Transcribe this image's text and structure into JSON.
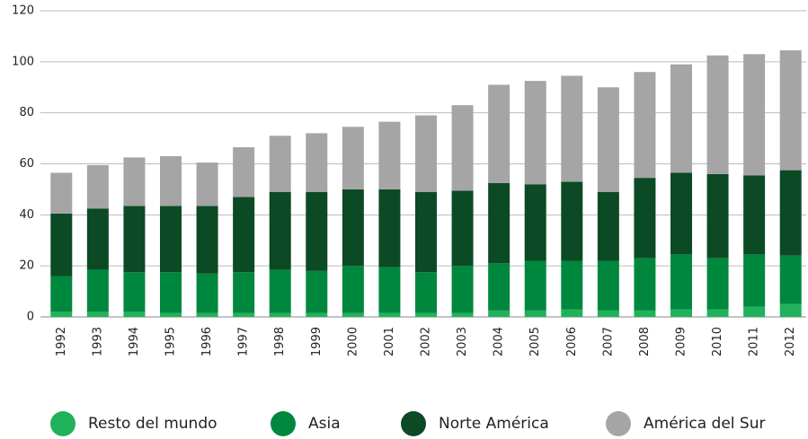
{
  "chart_data": {
    "type": "stacked_bar",
    "categories": [
      "1992",
      "1993",
      "1994",
      "1995",
      "1996",
      "1997",
      "1998",
      "1999",
      "2000",
      "2001",
      "2002",
      "2003",
      "2004",
      "2005",
      "2006",
      "2007",
      "2008",
      "2009",
      "2010",
      "2011",
      "2012"
    ],
    "series": [
      {
        "name": "Resto del mundo",
        "color": "#1fb25a",
        "values": [
          2,
          2,
          2,
          1.5,
          1.5,
          1.5,
          1.5,
          1.5,
          1.5,
          1.5,
          1.5,
          1.5,
          2.5,
          2.5,
          3,
          2.5,
          2.5,
          3,
          3,
          4,
          5
        ]
      },
      {
        "name": "Asia",
        "color": "#00873e",
        "values": [
          14,
          16.5,
          15.5,
          16,
          15.5,
          16,
          17,
          16.5,
          18.5,
          18,
          16,
          18.5,
          18.5,
          19.5,
          19,
          19.5,
          20.5,
          21.5,
          20,
          20.5,
          19
        ]
      },
      {
        "name": "Norte América",
        "color": "#0b4a24",
        "values": [
          24.5,
          24,
          26,
          26,
          26.5,
          29.5,
          30.5,
          31,
          30,
          30.5,
          31.5,
          29.5,
          31.5,
          30,
          31,
          27,
          31.5,
          32,
          33,
          31,
          33.5
        ]
      },
      {
        "name": "América del Sur",
        "color": "#a5a5a5",
        "values": [
          16,
          17,
          19,
          19.5,
          17,
          19.5,
          22,
          23,
          24.5,
          26.5,
          30,
          33.5,
          38.5,
          40.5,
          41.5,
          41,
          41.5,
          42.5,
          46.5,
          47.5,
          47
        ]
      }
    ],
    "ylim": [
      0,
      120
    ],
    "yticks": [
      0,
      20,
      40,
      60,
      80,
      100,
      120
    ],
    "grid": true,
    "legend": "bottom"
  }
}
